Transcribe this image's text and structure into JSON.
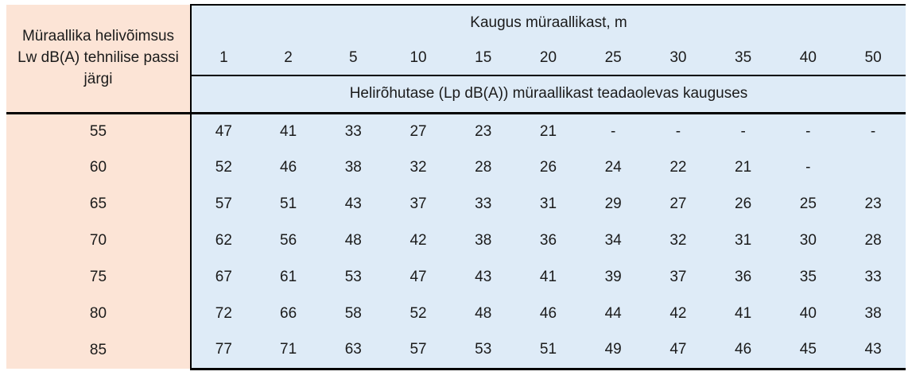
{
  "table": {
    "row_header_title": "Müraallika helivõimsus Lw dB(A) tehnilise passi järgi",
    "distance_header": "Kaugus müraallikast, m",
    "distance_columns": [
      "1",
      "2",
      "5",
      "10",
      "15",
      "20",
      "25",
      "30",
      "35",
      "40",
      "50"
    ],
    "subheader": "Helirõhutase (Lp dB(A)) müraallikast teadaolevas kauguses",
    "rows": [
      {
        "lw": "55",
        "values": [
          "47",
          "41",
          "33",
          "27",
          "23",
          "21",
          "-",
          "-",
          "-",
          "-",
          "-"
        ]
      },
      {
        "lw": "60",
        "values": [
          "52",
          "46",
          "38",
          "32",
          "28",
          "26",
          "24",
          "22",
          "21",
          "-",
          ""
        ]
      },
      {
        "lw": "65",
        "values": [
          "57",
          "51",
          "43",
          "37",
          "33",
          "31",
          "29",
          "27",
          "26",
          "25",
          "23"
        ]
      },
      {
        "lw": "70",
        "values": [
          "62",
          "56",
          "48",
          "42",
          "38",
          "36",
          "34",
          "32",
          "31",
          "30",
          "28"
        ]
      },
      {
        "lw": "75",
        "values": [
          "67",
          "61",
          "53",
          "47",
          "43",
          "41",
          "39",
          "37",
          "36",
          "35",
          "33"
        ]
      },
      {
        "lw": "80",
        "values": [
          "72",
          "66",
          "58",
          "52",
          "48",
          "46",
          "44",
          "42",
          "41",
          "40",
          "38"
        ]
      },
      {
        "lw": "85",
        "values": [
          "77",
          "71",
          "63",
          "57",
          "53",
          "51",
          "49",
          "47",
          "46",
          "45",
          "43"
        ]
      }
    ],
    "colors": {
      "row_header_bg": "#fce4d6",
      "data_bg": "#deebf7",
      "rule": "#000000"
    }
  }
}
